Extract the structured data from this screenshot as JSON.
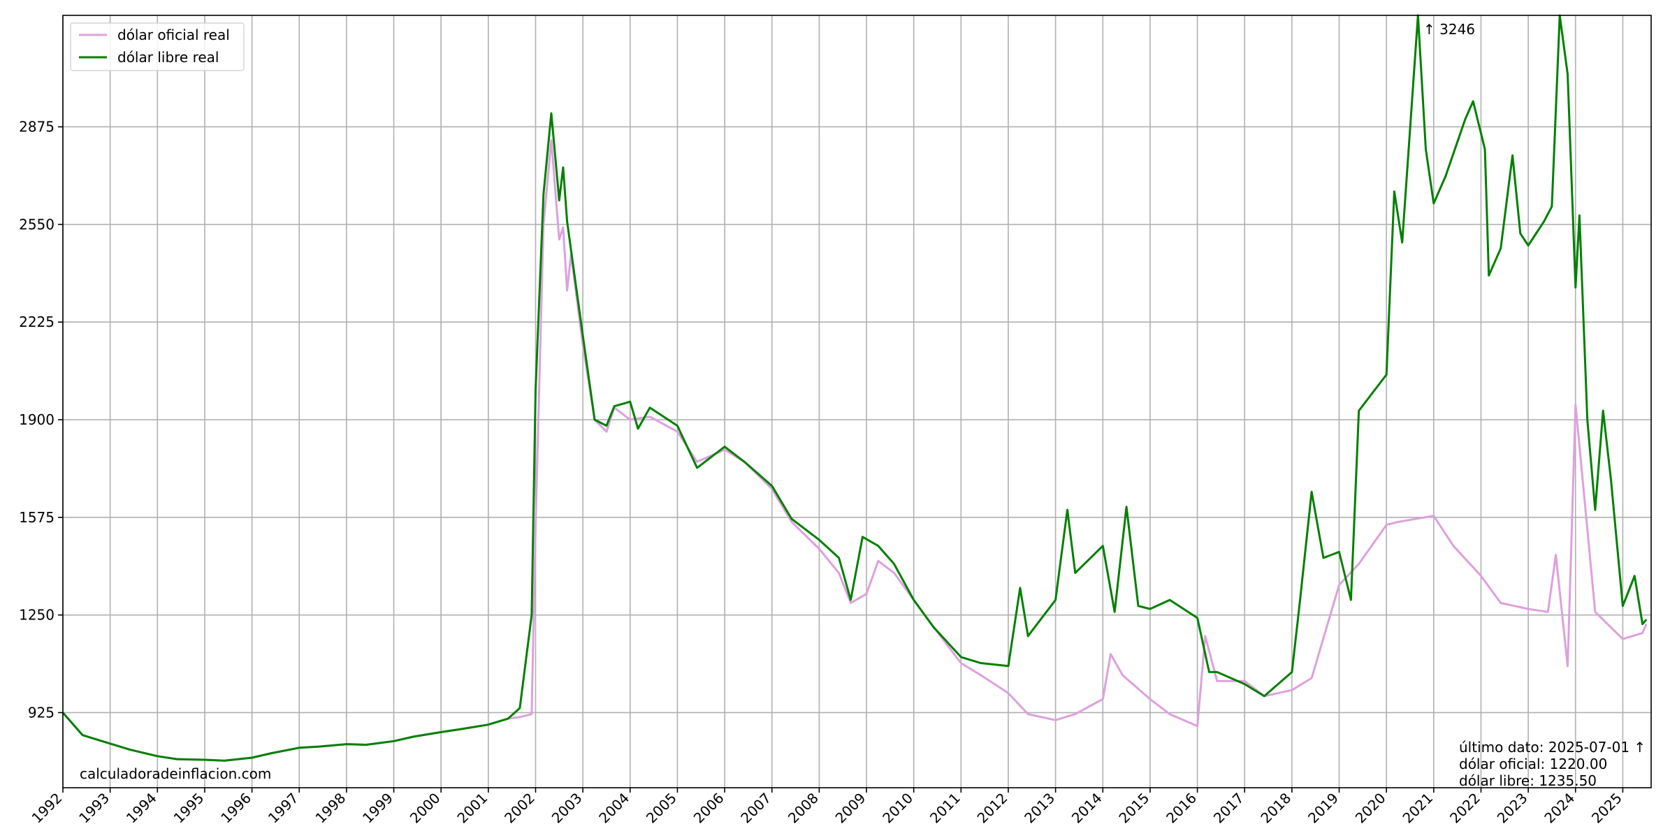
{
  "chart_data": {
    "type": "line",
    "x_start": "1992-01",
    "x_end": "2025-07",
    "xlim": [
      1992.0,
      2025.6
    ],
    "ylim": [
      675,
      3246
    ],
    "y_ticks": [
      925,
      1250,
      1575,
      1900,
      2225,
      2550,
      2875
    ],
    "x_tick_labels": [
      "1992",
      "1993",
      "1994",
      "1995",
      "1996",
      "1997",
      "1998",
      "1999",
      "2000",
      "2001",
      "2002",
      "2003",
      "2004",
      "2005",
      "2006",
      "2007",
      "2008",
      "2009",
      "2010",
      "2011",
      "2012",
      "2013",
      "2014",
      "2015",
      "2016",
      "2017",
      "2018",
      "2019",
      "2020",
      "2021",
      "2022",
      "2023",
      "2024",
      "2025"
    ],
    "grid": true,
    "legend_position": "top-left",
    "series": [
      {
        "name": "dólar oficial real",
        "color": "#dda0dd",
        "points": [
          [
            "1992-01",
            925
          ],
          [
            "1992-06",
            850
          ],
          [
            "1993-01",
            822
          ],
          [
            "1993-06",
            802
          ],
          [
            "1994-01",
            780
          ],
          [
            "1994-06",
            770
          ],
          [
            "1995-01",
            768
          ],
          [
            "1995-06",
            765
          ],
          [
            "1996-01",
            775
          ],
          [
            "1996-06",
            790
          ],
          [
            "1997-01",
            808
          ],
          [
            "1997-06",
            812
          ],
          [
            "1998-01",
            820
          ],
          [
            "1998-06",
            818
          ],
          [
            "1999-01",
            830
          ],
          [
            "1999-06",
            845
          ],
          [
            "2000-01",
            860
          ],
          [
            "2000-06",
            870
          ],
          [
            "2001-01",
            885
          ],
          [
            "2001-06",
            905
          ],
          [
            "2001-09",
            910
          ],
          [
            "2001-12",
            920
          ],
          [
            "2002-01",
            1550
          ],
          [
            "2002-03",
            2550
          ],
          [
            "2002-05",
            2830
          ],
          [
            "2002-07",
            2500
          ],
          [
            "2002-08",
            2540
          ],
          [
            "2002-09",
            2330
          ],
          [
            "2002-10",
            2450
          ],
          [
            "2003-01",
            2150
          ],
          [
            "2003-04",
            1900
          ],
          [
            "2003-07",
            1860
          ],
          [
            "2003-09",
            1940
          ],
          [
            "2004-01",
            1900
          ],
          [
            "2004-06",
            1910
          ],
          [
            "2005-01",
            1860
          ],
          [
            "2005-06",
            1760
          ],
          [
            "2006-01",
            1800
          ],
          [
            "2006-06",
            1760
          ],
          [
            "2007-01",
            1670
          ],
          [
            "2007-06",
            1560
          ],
          [
            "2008-01",
            1470
          ],
          [
            "2008-06",
            1390
          ],
          [
            "2008-09",
            1290
          ],
          [
            "2009-01",
            1320
          ],
          [
            "2009-04",
            1430
          ],
          [
            "2009-08",
            1390
          ],
          [
            "2010-01",
            1300
          ],
          [
            "2010-06",
            1210
          ],
          [
            "2011-01",
            1090
          ],
          [
            "2011-06",
            1050
          ],
          [
            "2012-01",
            990
          ],
          [
            "2012-06",
            920
          ],
          [
            "2013-01",
            900
          ],
          [
            "2013-06",
            920
          ],
          [
            "2014-01",
            970
          ],
          [
            "2014-03",
            1120
          ],
          [
            "2014-06",
            1050
          ],
          [
            "2015-01",
            970
          ],
          [
            "2015-06",
            920
          ],
          [
            "2016-01",
            880
          ],
          [
            "2016-03",
            1180
          ],
          [
            "2016-06",
            1030
          ],
          [
            "2017-01",
            1030
          ],
          [
            "2017-06",
            980
          ],
          [
            "2018-01",
            1000
          ],
          [
            "2018-06",
            1040
          ],
          [
            "2019-01",
            1350
          ],
          [
            "2019-06",
            1420
          ],
          [
            "2020-01",
            1550
          ],
          [
            "2020-04",
            1560
          ],
          [
            "2021-01",
            1580
          ],
          [
            "2021-06",
            1480
          ],
          [
            "2022-01",
            1380
          ],
          [
            "2022-06",
            1290
          ],
          [
            "2023-01",
            1270
          ],
          [
            "2023-06",
            1260
          ],
          [
            "2023-08",
            1450
          ],
          [
            "2023-11",
            1080
          ],
          [
            "2024-01",
            1950
          ],
          [
            "2024-06",
            1260
          ],
          [
            "2025-01",
            1170
          ],
          [
            "2025-06",
            1190
          ],
          [
            "2025-07",
            1220
          ]
        ]
      },
      {
        "name": "dólar libre real",
        "color": "#008000",
        "points": [
          [
            "1992-01",
            925
          ],
          [
            "1992-06",
            850
          ],
          [
            "1993-01",
            822
          ],
          [
            "1993-06",
            802
          ],
          [
            "1994-01",
            780
          ],
          [
            "1994-06",
            770
          ],
          [
            "1995-01",
            768
          ],
          [
            "1995-06",
            765
          ],
          [
            "1996-01",
            775
          ],
          [
            "1996-06",
            790
          ],
          [
            "1997-01",
            808
          ],
          [
            "1997-06",
            812
          ],
          [
            "1998-01",
            820
          ],
          [
            "1998-06",
            818
          ],
          [
            "1999-01",
            830
          ],
          [
            "1999-06",
            845
          ],
          [
            "2000-01",
            860
          ],
          [
            "2000-06",
            870
          ],
          [
            "2001-01",
            885
          ],
          [
            "2001-06",
            905
          ],
          [
            "2001-09",
            940
          ],
          [
            "2001-12",
            1250
          ],
          [
            "2002-01",
            2000
          ],
          [
            "2002-03",
            2650
          ],
          [
            "2002-05",
            2920
          ],
          [
            "2002-07",
            2630
          ],
          [
            "2002-08",
            2740
          ],
          [
            "2002-09",
            2560
          ],
          [
            "2003-01",
            2180
          ],
          [
            "2003-04",
            1900
          ],
          [
            "2003-07",
            1880
          ],
          [
            "2003-09",
            1945
          ],
          [
            "2004-01",
            1960
          ],
          [
            "2004-03",
            1870
          ],
          [
            "2004-06",
            1940
          ],
          [
            "2005-01",
            1880
          ],
          [
            "2005-06",
            1740
          ],
          [
            "2006-01",
            1810
          ],
          [
            "2006-06",
            1760
          ],
          [
            "2007-01",
            1680
          ],
          [
            "2007-06",
            1570
          ],
          [
            "2008-01",
            1500
          ],
          [
            "2008-06",
            1440
          ],
          [
            "2008-09",
            1300
          ],
          [
            "2008-12",
            1510
          ],
          [
            "2009-04",
            1480
          ],
          [
            "2009-08",
            1420
          ],
          [
            "2010-01",
            1300
          ],
          [
            "2010-06",
            1210
          ],
          [
            "2011-01",
            1110
          ],
          [
            "2011-06",
            1090
          ],
          [
            "2012-01",
            1080
          ],
          [
            "2012-04",
            1340
          ],
          [
            "2012-06",
            1180
          ],
          [
            "2013-01",
            1300
          ],
          [
            "2013-04",
            1600
          ],
          [
            "2013-06",
            1390
          ],
          [
            "2014-01",
            1480
          ],
          [
            "2014-04",
            1260
          ],
          [
            "2014-07",
            1610
          ],
          [
            "2014-10",
            1280
          ],
          [
            "2015-01",
            1270
          ],
          [
            "2015-06",
            1300
          ],
          [
            "2016-01",
            1240
          ],
          [
            "2016-04",
            1060
          ],
          [
            "2016-06",
            1060
          ],
          [
            "2017-01",
            1020
          ],
          [
            "2017-06",
            980
          ],
          [
            "2018-01",
            1060
          ],
          [
            "2018-03",
            1290
          ],
          [
            "2018-06",
            1660
          ],
          [
            "2018-09",
            1440
          ],
          [
            "2019-01",
            1460
          ],
          [
            "2019-04",
            1300
          ],
          [
            "2019-06",
            1930
          ],
          [
            "2020-01",
            2050
          ],
          [
            "2020-03",
            2660
          ],
          [
            "2020-05",
            2490
          ],
          [
            "2020-09",
            3246
          ],
          [
            "2020-11",
            2800
          ],
          [
            "2021-01",
            2620
          ],
          [
            "2021-04",
            2710
          ],
          [
            "2021-09",
            2900
          ],
          [
            "2021-11",
            2960
          ],
          [
            "2022-02",
            2800
          ],
          [
            "2022-03",
            2380
          ],
          [
            "2022-06",
            2470
          ],
          [
            "2022-09",
            2780
          ],
          [
            "2022-11",
            2520
          ],
          [
            "2023-01",
            2480
          ],
          [
            "2023-05",
            2560
          ],
          [
            "2023-07",
            2610
          ],
          [
            "2023-09",
            3246
          ],
          [
            "2023-11",
            3050
          ],
          [
            "2024-01",
            2340
          ],
          [
            "2024-02",
            2580
          ],
          [
            "2024-04",
            1900
          ],
          [
            "2024-06",
            1600
          ],
          [
            "2024-08",
            1930
          ],
          [
            "2024-10",
            1700
          ],
          [
            "2025-01",
            1280
          ],
          [
            "2025-04",
            1380
          ],
          [
            "2025-06",
            1220
          ],
          [
            "2025-07",
            1235
          ]
        ]
      }
    ],
    "offscale_annotation": "↑ 3246",
    "footer": {
      "ultimo_dato": "último dato: 2025-07-01 ↑",
      "oficial": "dólar oficial: 1220.00",
      "libre": "dólar libre: 1235.50"
    },
    "watermark": "calculadoradeinflacion.com"
  }
}
